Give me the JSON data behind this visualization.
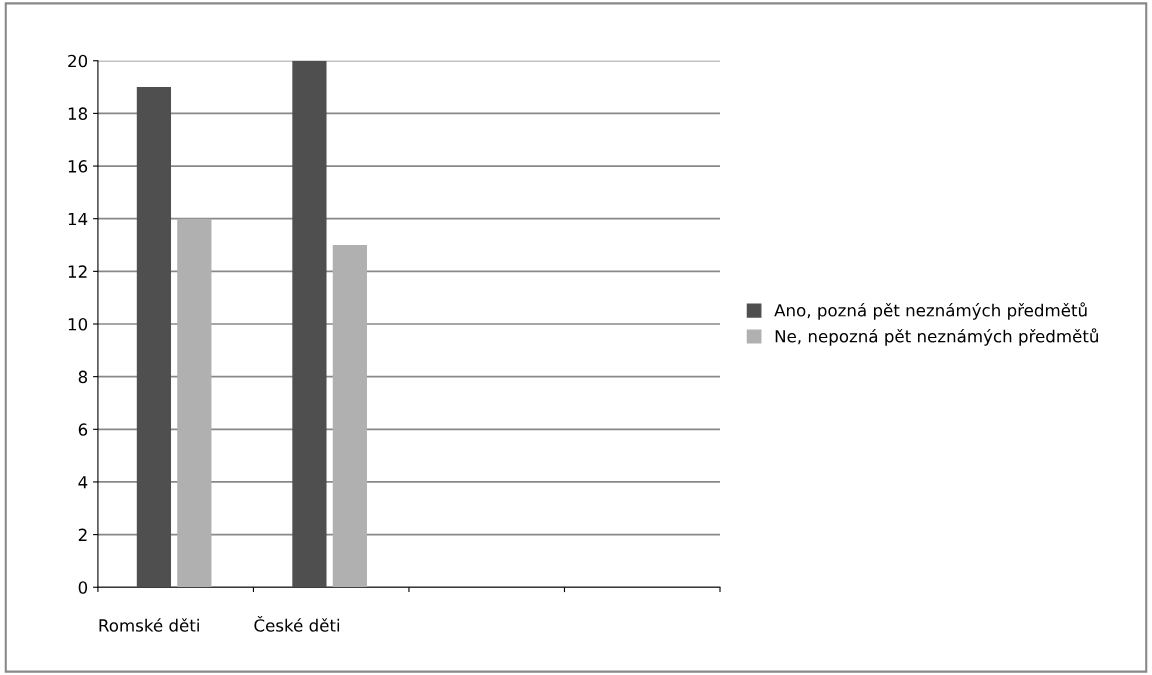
{
  "chart_data": {
    "type": "bar",
    "categories": [
      "Romské děti",
      "České děti",
      null,
      null
    ],
    "series": [
      {
        "name": "Ano, pozná pět neznámých předmětů",
        "color": "#4f4f4f",
        "values": [
          19,
          20,
          null,
          null
        ]
      },
      {
        "name": "Ne, nepozná pět neznámých předmětů",
        "color": "#b0b0b0",
        "values": [
          14,
          13,
          null,
          null
        ]
      }
    ],
    "ylim": [
      0,
      20
    ],
    "yticks": [
      0,
      2,
      4,
      6,
      8,
      10,
      12,
      14,
      16,
      18,
      20
    ],
    "grid": "y",
    "legend": "right"
  }
}
